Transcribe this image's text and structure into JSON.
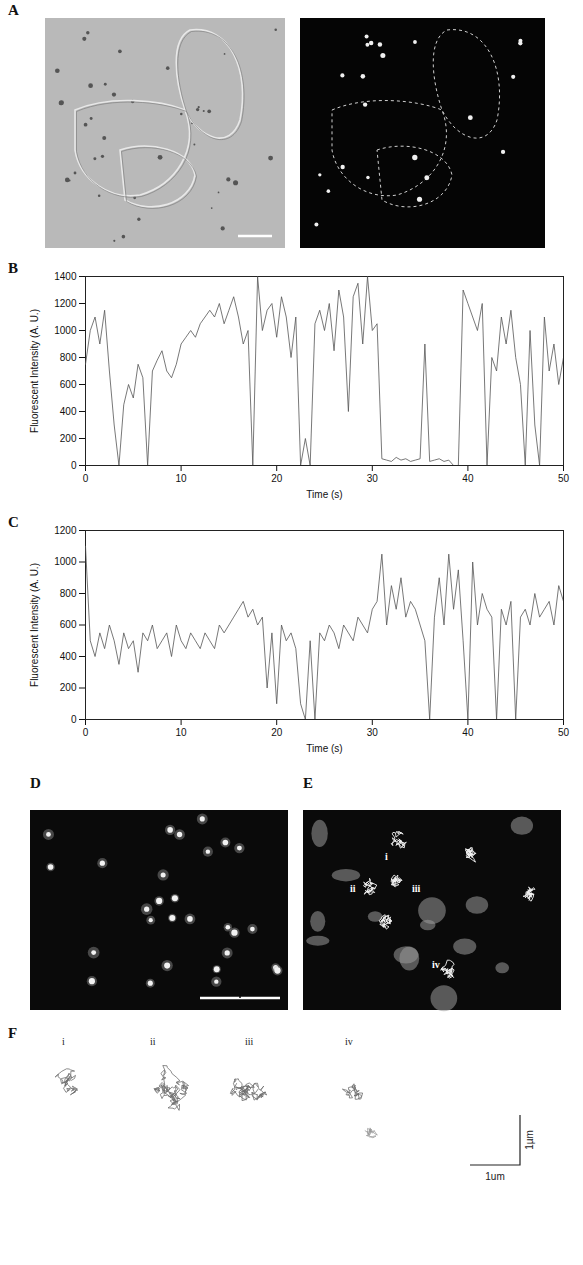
{
  "chart_data": [
    {
      "type": "image",
      "panel": "A"
    },
    {
      "type": "line",
      "panel": "B",
      "xlabel": "Time (s)",
      "ylabel": "Fluorescent Intensity (A. U.)",
      "color": "#555555",
      "x": [
        0,
        0.5,
        1,
        1.5,
        2,
        2.5,
        3,
        3.5,
        4,
        4.5,
        5,
        5.5,
        6,
        6.5,
        7,
        7.5,
        8,
        8.5,
        9,
        9.5,
        10,
        10.5,
        11,
        11.5,
        12,
        12.5,
        13,
        13.5,
        14,
        14.5,
        15,
        15.5,
        16,
        16.5,
        17,
        17.5,
        18,
        18.5,
        19,
        19.5,
        20,
        20.5,
        21,
        21.5,
        22,
        22.5,
        23,
        23.5,
        24,
        24.5,
        25,
        25.5,
        26,
        26.5,
        27,
        27.5,
        28,
        28.5,
        29,
        29.5,
        30,
        30.5,
        31,
        31.5,
        32,
        32.5,
        33,
        33.5,
        34,
        34.5,
        35,
        35.5,
        36,
        36.5,
        37,
        37.5,
        38,
        38.5,
        39,
        39.5,
        40,
        40.5,
        41,
        41.5,
        42,
        42.5,
        43,
        43.5,
        44,
        44.5,
        45,
        45.5,
        46,
        46.5,
        47,
        47.5,
        48,
        48.5,
        49,
        49.5,
        50
      ],
      "values": [
        750,
        1000,
        1100,
        900,
        1150,
        700,
        300,
        0,
        450,
        600,
        500,
        750,
        650,
        0,
        700,
        780,
        850,
        700,
        650,
        750,
        900,
        950,
        1000,
        950,
        1050,
        1100,
        1150,
        1100,
        1200,
        1050,
        1150,
        1250,
        1100,
        900,
        1000,
        0,
        1400,
        1000,
        1150,
        1200,
        950,
        1250,
        1100,
        800,
        1100,
        0,
        200,
        0,
        1050,
        1150,
        1000,
        1200,
        850,
        1300,
        1100,
        400,
        1250,
        1350,
        900,
        1400,
        1000,
        1050,
        50,
        40,
        30,
        60,
        40,
        50,
        30,
        40,
        50,
        900,
        30,
        40,
        50,
        30,
        40,
        0,
        0,
        1300,
        1200,
        1100,
        1000,
        1200,
        0,
        800,
        700,
        1100,
        900,
        1150,
        800,
        600,
        0,
        1000,
        300,
        0,
        1100,
        700,
        900,
        600,
        800
      ],
      "xlim": [
        0,
        50
      ],
      "xticks": [
        0,
        10,
        20,
        30,
        40,
        50
      ],
      "ylim": [
        0,
        1400
      ],
      "yticks": [
        0,
        200,
        400,
        600,
        800,
        1000,
        1200,
        1400
      ]
    },
    {
      "type": "line",
      "panel": "C",
      "xlabel": "Time (s)",
      "ylabel": "Fluorescent Intensity (A. U.)",
      "color": "#555555",
      "x": [
        0,
        0.5,
        1,
        1.5,
        2,
        2.5,
        3,
        3.5,
        4,
        4.5,
        5,
        5.5,
        6,
        6.5,
        7,
        7.5,
        8,
        8.5,
        9,
        9.5,
        10,
        10.5,
        11,
        11.5,
        12,
        12.5,
        13,
        13.5,
        14,
        14.5,
        15,
        15.5,
        16,
        16.5,
        17,
        17.5,
        18,
        18.5,
        19,
        19.5,
        20,
        20.5,
        21,
        21.5,
        22,
        22.5,
        23,
        23.5,
        24,
        24.5,
        25,
        25.5,
        26,
        26.5,
        27,
        27.5,
        28,
        28.5,
        29,
        29.5,
        30,
        30.5,
        31,
        31.5,
        32,
        32.5,
        33,
        33.5,
        34,
        34.5,
        35,
        35.5,
        36,
        36.5,
        37,
        37.5,
        38,
        38.5,
        39,
        39.5,
        40,
        40.5,
        41,
        41.5,
        42,
        42.5,
        43,
        43.5,
        44,
        44.5,
        45,
        45.5,
        46,
        46.5,
        47,
        47.5,
        48,
        48.5,
        49,
        49.5,
        50
      ],
      "values": [
        1100,
        500,
        400,
        550,
        450,
        600,
        500,
        350,
        550,
        450,
        500,
        300,
        550,
        500,
        600,
        450,
        500,
        550,
        400,
        600,
        500,
        450,
        550,
        500,
        450,
        550,
        500,
        450,
        600,
        550,
        600,
        650,
        700,
        750,
        650,
        700,
        600,
        650,
        200,
        550,
        100,
        600,
        500,
        550,
        450,
        100,
        0,
        500,
        0,
        550,
        500,
        600,
        550,
        450,
        600,
        550,
        500,
        650,
        600,
        550,
        700,
        750,
        1050,
        600,
        850,
        700,
        900,
        650,
        750,
        700,
        600,
        500,
        0,
        650,
        900,
        600,
        1050,
        700,
        950,
        500,
        0,
        1000,
        600,
        800,
        700,
        650,
        0,
        700,
        600,
        750,
        0,
        650,
        700,
        600,
        800,
        650,
        700,
        750,
        600,
        850,
        750
      ],
      "xlim": [
        0,
        50
      ],
      "xticks": [
        0,
        10,
        20,
        30,
        40,
        50
      ],
      "ylim": [
        0,
        1200
      ],
      "yticks": [
        0,
        200,
        400,
        600,
        800,
        1000,
        1200
      ]
    },
    {
      "type": "image",
      "panel": "D"
    },
    {
      "type": "image",
      "panel": "E",
      "labels": [
        "i",
        "ii",
        "iii",
        "iv"
      ]
    },
    {
      "type": "trajectories",
      "panel": "F",
      "labels": [
        "i",
        "ii",
        "iii",
        "iv"
      ],
      "scale_labels": [
        "1µm",
        "1um"
      ]
    }
  ]
}
